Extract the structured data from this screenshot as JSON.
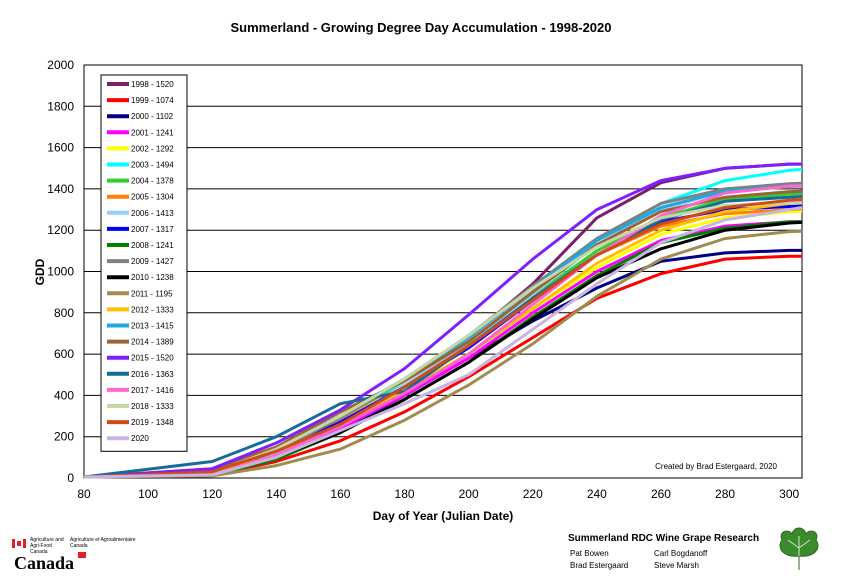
{
  "chart_data": {
    "type": "line",
    "title": "Summerland - Growing Degree Day Accumulation - 1998-2020",
    "xlabel": "Day of Year (Julian Date)",
    "ylabel": "GDD",
    "xlim": [
      80,
      304
    ],
    "ylim": [
      0,
      2000
    ],
    "xticks": [
      "80",
      "100",
      "120",
      "140",
      "160",
      "180",
      "200",
      "220",
      "240",
      "260",
      "280",
      "300"
    ],
    "yticks": [
      "0",
      "200",
      "400",
      "600",
      "800",
      "1000",
      "1200",
      "1400",
      "1600",
      "1800",
      "2000"
    ],
    "grid": "horizontal",
    "legend_position": "top-left",
    "annotation": "Created by Brad Estergaard, 2020",
    "series": [
      {
        "name": "1998 - 1520",
        "color": "#7b1f6b",
        "x": [
          80,
          120,
          140,
          160,
          180,
          200,
          220,
          240,
          260,
          280,
          300,
          304
        ],
        "y": [
          5,
          30,
          140,
          300,
          480,
          680,
          940,
          1260,
          1430,
          1500,
          1520,
          1520
        ]
      },
      {
        "name": "1999 - 1074",
        "color": "#ff0000",
        "x": [
          80,
          120,
          140,
          160,
          180,
          200,
          220,
          240,
          260,
          280,
          300,
          304
        ],
        "y": [
          5,
          15,
          80,
          180,
          320,
          490,
          680,
          870,
          990,
          1060,
          1074,
          1074
        ]
      },
      {
        "name": "2000 - 1102",
        "color": "#000080",
        "x": [
          80,
          120,
          140,
          160,
          180,
          200,
          220,
          240,
          260,
          280,
          300,
          304
        ],
        "y": [
          5,
          25,
          110,
          230,
          400,
          580,
          760,
          920,
          1050,
          1090,
          1102,
          1102
        ]
      },
      {
        "name": "2001 - 1241",
        "color": "#ff00ff",
        "x": [
          80,
          120,
          140,
          160,
          180,
          200,
          220,
          240,
          260,
          280,
          300,
          304
        ],
        "y": [
          5,
          15,
          100,
          240,
          400,
          580,
          800,
          1000,
          1150,
          1220,
          1241,
          1241
        ]
      },
      {
        "name": "2002 - 1292",
        "color": "#ffff00",
        "x": [
          80,
          120,
          140,
          160,
          180,
          200,
          220,
          240,
          260,
          280,
          300,
          304
        ],
        "y": [
          5,
          20,
          120,
          280,
          430,
          600,
          820,
          1020,
          1180,
          1260,
          1290,
          1292
        ]
      },
      {
        "name": "2003 - 1494",
        "color": "#00ffff",
        "x": [
          80,
          120,
          140,
          160,
          180,
          200,
          220,
          240,
          260,
          280,
          300,
          304
        ],
        "y": [
          5,
          30,
          130,
          290,
          470,
          660,
          900,
          1150,
          1330,
          1440,
          1490,
          1494
        ]
      },
      {
        "name": "2004 - 1378",
        "color": "#33cc33",
        "x": [
          80,
          120,
          140,
          160,
          180,
          200,
          220,
          240,
          260,
          280,
          300,
          304
        ],
        "y": [
          5,
          30,
          140,
          290,
          450,
          630,
          880,
          1100,
          1260,
          1350,
          1375,
          1378
        ]
      },
      {
        "name": "2005 - 1304",
        "color": "#ff8000",
        "x": [
          80,
          120,
          140,
          160,
          180,
          200,
          220,
          240,
          260,
          280,
          300,
          304
        ],
        "y": [
          5,
          45,
          150,
          280,
          450,
          630,
          870,
          1080,
          1220,
          1280,
          1300,
          1304
        ]
      },
      {
        "name": "2006 - 1413",
        "color": "#99ccff",
        "x": [
          80,
          120,
          140,
          160,
          180,
          200,
          220,
          240,
          260,
          280,
          300,
          304
        ],
        "y": [
          5,
          20,
          120,
          270,
          450,
          650,
          890,
          1130,
          1300,
          1390,
          1410,
          1413
        ]
      },
      {
        "name": "2007 - 1317",
        "color": "#0000ff",
        "x": [
          80,
          120,
          140,
          160,
          180,
          200,
          220,
          240,
          260,
          280,
          300,
          304
        ],
        "y": [
          5,
          25,
          130,
          270,
          440,
          630,
          860,
          1080,
          1240,
          1300,
          1315,
          1317
        ]
      },
      {
        "name": "2008 - 1241",
        "color": "#008000",
        "x": [
          80,
          120,
          140,
          160,
          180,
          200,
          220,
          240,
          260,
          280,
          300,
          304
        ],
        "y": [
          5,
          15,
          90,
          220,
          380,
          560,
          780,
          980,
          1140,
          1210,
          1240,
          1241
        ]
      },
      {
        "name": "2009 - 1427",
        "color": "#808080",
        "x": [
          80,
          120,
          140,
          160,
          180,
          200,
          220,
          240,
          260,
          280,
          300,
          304
        ],
        "y": [
          5,
          25,
          130,
          290,
          480,
          690,
          930,
          1160,
          1330,
          1400,
          1425,
          1427
        ]
      },
      {
        "name": "2010 - 1238",
        "color": "#000000",
        "x": [
          80,
          120,
          140,
          160,
          180,
          200,
          220,
          240,
          260,
          280,
          300,
          304
        ],
        "y": [
          5,
          20,
          100,
          220,
          380,
          560,
          770,
          970,
          1110,
          1200,
          1235,
          1238
        ]
      },
      {
        "name": "2011 - 1195",
        "color": "#a08c50",
        "x": [
          80,
          120,
          140,
          160,
          180,
          200,
          220,
          240,
          260,
          280,
          300,
          304
        ],
        "y": [
          5,
          10,
          60,
          140,
          280,
          450,
          650,
          880,
          1060,
          1160,
          1193,
          1195
        ]
      },
      {
        "name": "2012 - 1333",
        "color": "#ffc000",
        "x": [
          80,
          120,
          140,
          160,
          180,
          200,
          220,
          240,
          260,
          280,
          300,
          304
        ],
        "y": [
          5,
          20,
          110,
          260,
          420,
          600,
          820,
          1040,
          1200,
          1290,
          1330,
          1333
        ]
      },
      {
        "name": "2013 - 1415",
        "color": "#1fa8e0",
        "x": [
          80,
          120,
          140,
          160,
          180,
          200,
          220,
          240,
          260,
          280,
          300,
          304
        ],
        "y": [
          5,
          30,
          140,
          300,
          480,
          680,
          920,
          1150,
          1310,
          1390,
          1413,
          1415
        ]
      },
      {
        "name": "2014 - 1389",
        "color": "#996633",
        "x": [
          80,
          120,
          140,
          160,
          180,
          200,
          220,
          240,
          260,
          280,
          300,
          304
        ],
        "y": [
          5,
          35,
          150,
          320,
          470,
          660,
          900,
          1130,
          1290,
          1360,
          1387,
          1389
        ]
      },
      {
        "name": "2015 - 1520",
        "color": "#7f1fff",
        "x": [
          80,
          120,
          140,
          160,
          180,
          200,
          220,
          240,
          260,
          280,
          300,
          304
        ],
        "y": [
          5,
          45,
          170,
          330,
          530,
          790,
          1060,
          1300,
          1440,
          1500,
          1520,
          1520
        ]
      },
      {
        "name": "2016 - 1363",
        "color": "#156c96",
        "x": [
          80,
          120,
          140,
          160,
          180,
          200,
          220,
          240,
          260,
          280,
          300,
          304
        ],
        "y": [
          5,
          80,
          200,
          360,
          420,
          640,
          870,
          1080,
          1250,
          1340,
          1360,
          1363
        ]
      },
      {
        "name": "2017 - 1416",
        "color": "#ff66cc",
        "x": [
          80,
          120,
          140,
          160,
          180,
          200,
          220,
          240,
          260,
          280,
          300,
          304
        ],
        "y": [
          5,
          15,
          110,
          250,
          410,
          600,
          840,
          1080,
          1270,
          1380,
          1414,
          1416
        ]
      },
      {
        "name": "2018 - 1333",
        "color": "#c4d7a4",
        "x": [
          80,
          120,
          140,
          160,
          180,
          200,
          220,
          240,
          260,
          280,
          300,
          304
        ],
        "y": [
          5,
          25,
          140,
          300,
          480,
          690,
          920,
          1120,
          1260,
          1320,
          1332,
          1333
        ]
      },
      {
        "name": "2019 - 1348",
        "color": "#d04a1b",
        "x": [
          80,
          120,
          140,
          160,
          180,
          200,
          220,
          240,
          260,
          280,
          300,
          304
        ],
        "y": [
          5,
          30,
          130,
          260,
          440,
          640,
          860,
          1080,
          1230,
          1310,
          1345,
          1348
        ]
      },
      {
        "name": "2020",
        "color": "#c8b4e0",
        "x": [
          80,
          120,
          140,
          160,
          180,
          200,
          220,
          240,
          260,
          280,
          300,
          304
        ],
        "y": [
          5,
          15,
          100,
          230,
          360,
          500,
          720,
          940,
          1140,
          1250,
          1300,
          1310
        ]
      }
    ]
  },
  "footer": {
    "gov_en": "Agriculture and Agri-Food Canada",
    "gov_fr": "Agriculture et Agroalimentaire Canada",
    "wordmark": "Canada",
    "research_title": "Summerland RDC Wine Grape Research",
    "people": [
      "Pat Bowen",
      "Carl Bogdanoff",
      "Brad Estergaard",
      "Steve Marsh"
    ],
    "leaf_icon": "grape-leaf-icon"
  }
}
